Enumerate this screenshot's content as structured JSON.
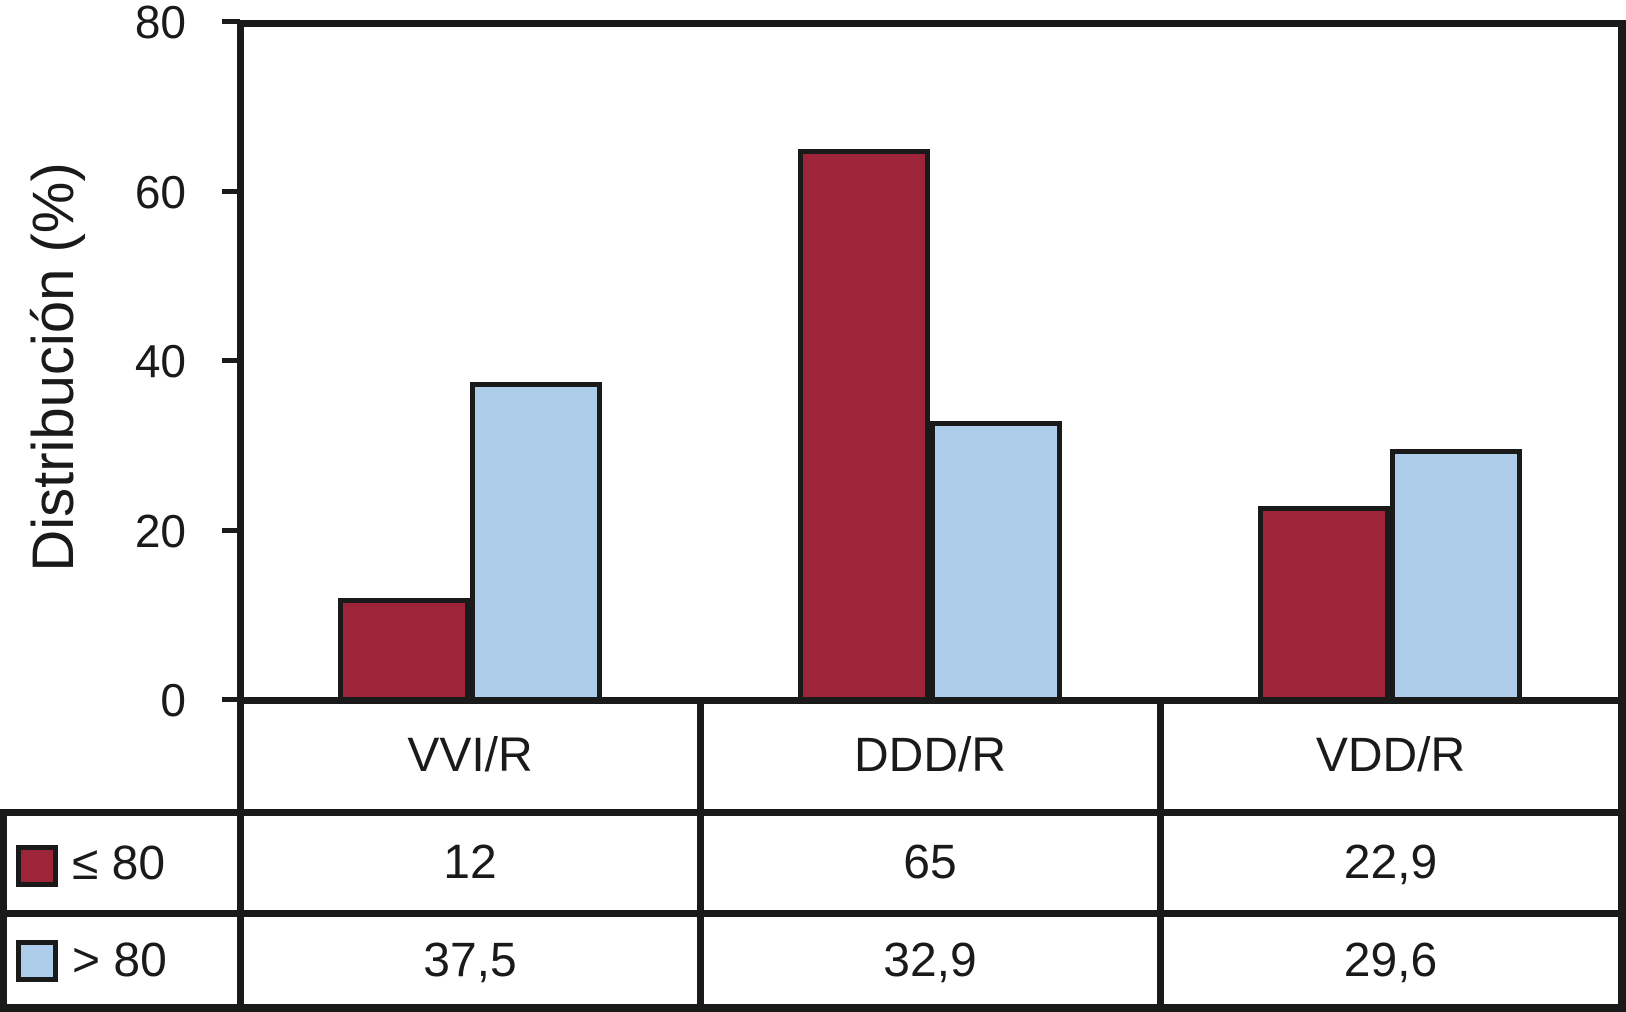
{
  "chart_data": {
    "type": "bar",
    "categories": [
      "VVI/R",
      "DDD/R",
      "VDD/R"
    ],
    "series": [
      {
        "name": "≤ 80",
        "color": "#9E2439",
        "values": [
          12,
          65,
          22.9
        ]
      },
      {
        "name": "> 80",
        "color": "#AECDEB",
        "values": [
          37.5,
          32.9,
          29.6
        ]
      }
    ],
    "title": "",
    "xlabel": "",
    "ylabel": "Distribución (%)",
    "ylim": [
      0,
      80
    ],
    "yticks": [
      0,
      20,
      40,
      60,
      80
    ],
    "grid": false,
    "legend_position": "table-left"
  },
  "colors": {
    "series_le80": "#9E2439",
    "series_gt80": "#AECDEB",
    "line": "#1a1a1a",
    "background": "#ffffff"
  },
  "table": {
    "columns": [
      "VVI/R",
      "DDD/R",
      "VDD/R"
    ],
    "rows": [
      {
        "label": "≤ 80",
        "values": [
          "12",
          "65",
          "22,9"
        ]
      },
      {
        "label": "> 80",
        "values": [
          "37,5",
          "32,9",
          "29,6"
        ]
      }
    ]
  }
}
